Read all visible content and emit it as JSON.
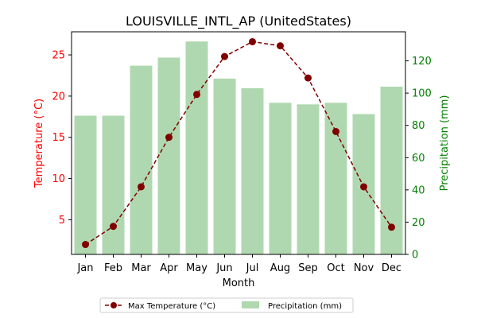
{
  "chart_data": {
    "type": "bar+line",
    "title": "LOUISVILLE_INTL_AP (UnitedStates)",
    "xlabel": "Month",
    "categories": [
      "Jan",
      "Feb",
      "Mar",
      "Apr",
      "May",
      "Jun",
      "Jul",
      "Aug",
      "Sep",
      "Oct",
      "Nov",
      "Dec"
    ],
    "left_axis": {
      "label": "Temperature (°C)",
      "ylim": [
        0.8,
        27.8
      ],
      "ticks": [
        5,
        10,
        15,
        20,
        25
      ],
      "tick_labels": [
        "5",
        "10",
        "15",
        "20",
        "25"
      ],
      "color": "#ff0000"
    },
    "right_axis": {
      "label": "Precipitation (mm)",
      "ylim": [
        0,
        138
      ],
      "ticks": [
        0,
        20,
        40,
        60,
        80,
        100,
        120
      ],
      "tick_labels": [
        "0",
        "20",
        "40",
        "60",
        "80",
        "100",
        "120"
      ],
      "color": "#008000"
    },
    "series": [
      {
        "name": "Max Temperature (°C)",
        "kind": "line",
        "axis": "left",
        "color": "#800000",
        "line_style": "dashed",
        "marker": "circle",
        "values": [
          2.0,
          4.2,
          9.0,
          15.0,
          20.2,
          24.8,
          26.6,
          26.1,
          22.2,
          15.7,
          9.0,
          4.1
        ]
      },
      {
        "name": "Precipitation (mm)",
        "kind": "bar",
        "axis": "right",
        "color": "#b0d8b0",
        "values": [
          86,
          86,
          117,
          122,
          132,
          109,
          103,
          94,
          93,
          94,
          87,
          104
        ]
      }
    ],
    "legend": {
      "placement": "bottom-center",
      "columns": 2
    },
    "grid": false
  }
}
